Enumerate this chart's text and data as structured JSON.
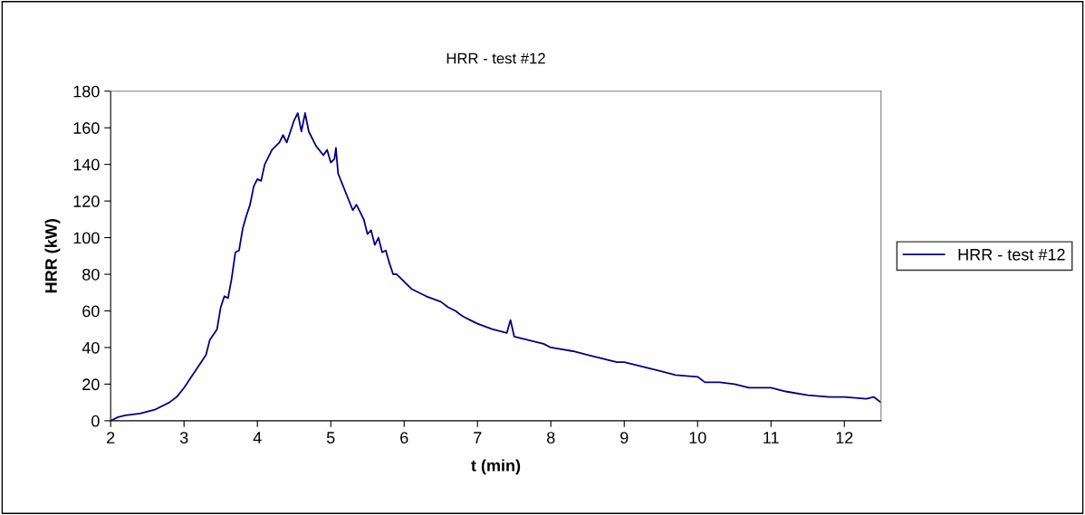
{
  "chart_data": {
    "type": "line",
    "title": "HRR - test #12",
    "xlabel": "t (min)",
    "ylabel": "HRR (kW)",
    "xlim": [
      2,
      12.5
    ],
    "xticks": [
      2,
      3,
      4,
      5,
      6,
      7,
      8,
      9,
      10,
      11,
      12
    ],
    "ylim": [
      0,
      180
    ],
    "yticks": [
      0,
      20,
      40,
      60,
      80,
      100,
      120,
      140,
      160,
      180
    ],
    "grid": false,
    "legend": "right",
    "marker": "none",
    "line_style": "solid",
    "series": [
      {
        "name": "HRR - test #12",
        "color": "#000080",
        "x": [
          2.0,
          2.1,
          2.2,
          2.4,
          2.6,
          2.8,
          2.9,
          3.0,
          3.1,
          3.2,
          3.3,
          3.35,
          3.45,
          3.5,
          3.55,
          3.6,
          3.65,
          3.7,
          3.75,
          3.8,
          3.85,
          3.9,
          3.95,
          4.0,
          4.05,
          4.1,
          4.2,
          4.3,
          4.35,
          4.4,
          4.45,
          4.5,
          4.55,
          4.6,
          4.65,
          4.7,
          4.8,
          4.9,
          4.95,
          5.0,
          5.05,
          5.07,
          5.1,
          5.15,
          5.2,
          5.3,
          5.35,
          5.45,
          5.5,
          5.55,
          5.6,
          5.65,
          5.7,
          5.75,
          5.8,
          5.85,
          5.9,
          6.0,
          6.1,
          6.2,
          6.3,
          6.5,
          6.6,
          6.7,
          6.8,
          6.9,
          7.0,
          7.2,
          7.4,
          7.45,
          7.5,
          7.7,
          7.9,
          8.0,
          8.3,
          8.5,
          8.7,
          8.9,
          9.0,
          9.2,
          9.5,
          9.7,
          10.0,
          10.1,
          10.3,
          10.5,
          10.7,
          11.0,
          11.2,
          11.5,
          11.8,
          12.0,
          12.3,
          12.4,
          12.5
        ],
        "values": [
          0,
          2,
          3,
          4,
          6,
          10,
          13,
          18,
          24,
          30,
          36,
          44,
          50,
          62,
          68,
          67,
          78,
          92,
          93,
          105,
          112,
          118,
          128,
          132,
          131,
          140,
          148,
          152,
          156,
          152,
          158,
          164,
          168,
          158,
          168,
          158,
          150,
          145,
          148,
          141,
          143,
          149,
          135,
          130,
          125,
          115,
          118,
          110,
          102,
          104,
          96,
          100,
          92,
          93,
          86,
          80,
          80,
          76,
          72,
          70,
          68,
          65,
          62,
          60,
          57,
          55,
          53,
          50,
          48,
          55,
          46,
          44,
          42,
          40,
          38,
          36,
          34,
          32,
          32,
          30,
          27,
          25,
          24,
          21,
          21,
          20,
          18,
          18,
          16,
          14,
          13,
          13,
          12,
          13,
          10
        ]
      }
    ]
  }
}
